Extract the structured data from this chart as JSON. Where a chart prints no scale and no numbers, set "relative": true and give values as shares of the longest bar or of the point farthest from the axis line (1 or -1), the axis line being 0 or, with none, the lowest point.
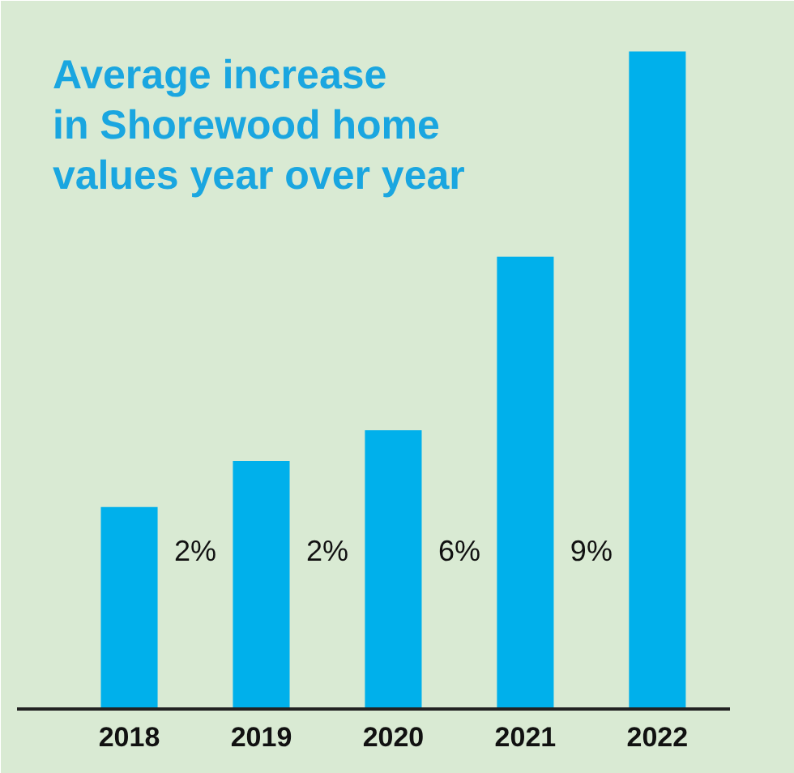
{
  "chart_data": {
    "type": "bar",
    "title": "Average increase\nin Shorewood home\nvalues year over year",
    "categories": [
      "2018",
      "2019",
      "2020",
      "2021",
      "2022"
    ],
    "values": [
      0.307,
      0.377,
      0.424,
      0.688,
      1
    ],
    "annotations": [
      "2%",
      "2%",
      "6%",
      "9%"
    ],
    "color": "#00b0eb",
    "relative": true,
    "grid": false
  }
}
